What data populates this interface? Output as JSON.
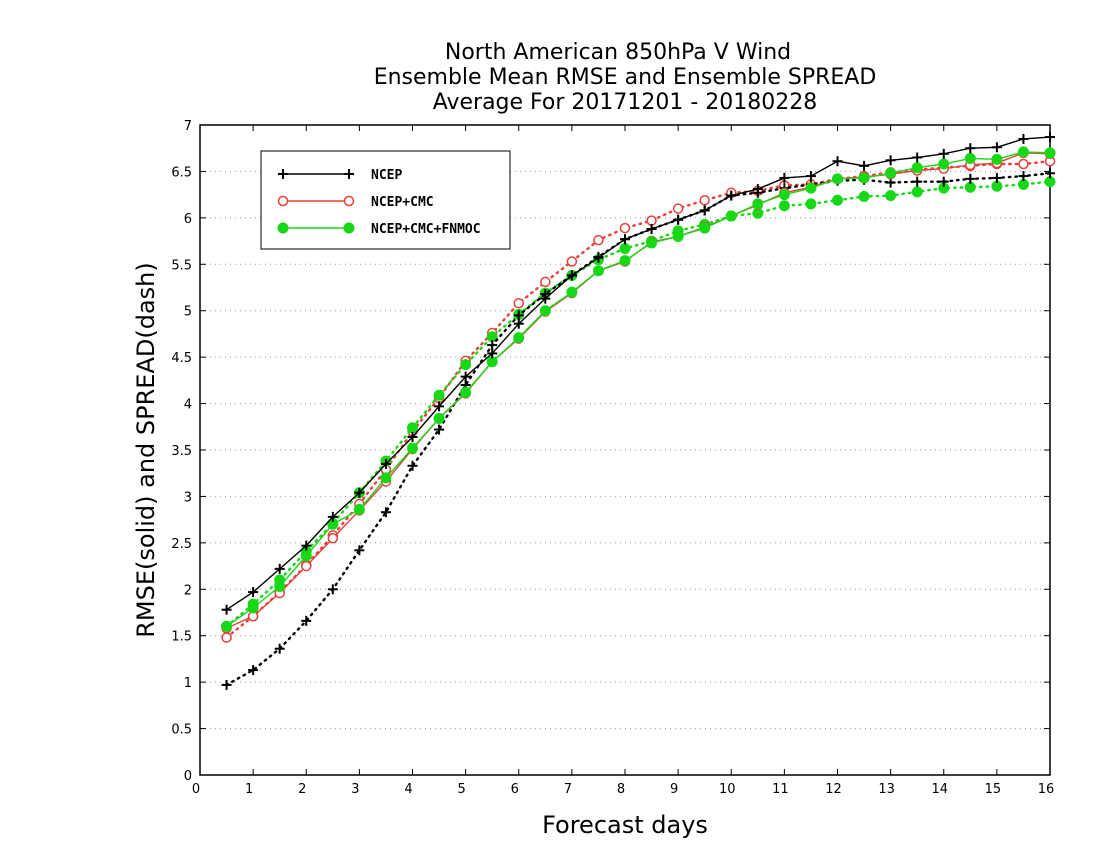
{
  "chart_data": {
    "type": "line",
    "title_lines": [
      "North American 850hPa V Wind",
      "Ensemble Mean RMSE and Ensemble SPREAD",
      "Average For 20171201 - 20180228"
    ],
    "xlabel": "Forecast days",
    "ylabel": "RMSE(solid) and SPREAD(dash)",
    "xlim": [
      0,
      16
    ],
    "ylim": [
      0,
      7
    ],
    "x_ticks": [
      0,
      1,
      2,
      3,
      4,
      5,
      6,
      7,
      8,
      9,
      10,
      11,
      12,
      13,
      14,
      15,
      16
    ],
    "y_ticks": [
      0,
      0.5,
      1,
      1.5,
      2,
      2.5,
      3,
      3.5,
      4,
      4.5,
      5,
      5.5,
      6,
      6.5,
      7
    ],
    "y_tick_labels": [
      "0",
      "0.5",
      "1",
      "1.5",
      "2",
      "2.5",
      "3",
      "3.5",
      "4",
      "4.5",
      "5",
      "5.5",
      "6",
      "6.5",
      "7"
    ],
    "grid": "horizontal dotted",
    "legend_position": "top-left",
    "x": [
      0.5,
      1,
      1.5,
      2,
      2.5,
      3,
      3.5,
      4,
      4.5,
      5,
      5.5,
      6,
      6.5,
      7,
      7.5,
      8,
      8.5,
      9,
      9.5,
      10,
      10.5,
      11,
      11.5,
      12,
      12.5,
      13,
      13.5,
      14,
      14.5,
      15,
      15.5,
      16
    ],
    "series": [
      {
        "name": "NCEP",
        "color": "#000000",
        "marker": "plus",
        "rmse": [
          1.78,
          1.97,
          2.22,
          2.47,
          2.78,
          3.04,
          3.35,
          3.64,
          3.97,
          4.29,
          4.54,
          4.86,
          5.13,
          5.38,
          5.57,
          5.77,
          5.88,
          5.98,
          6.08,
          6.24,
          6.31,
          6.43,
          6.45,
          6.61,
          6.56,
          6.62,
          6.65,
          6.69,
          6.75,
          6.76,
          6.85,
          6.87
        ],
        "spread": [
          0.97,
          1.13,
          1.36,
          1.66,
          2.0,
          2.42,
          2.83,
          3.33,
          3.72,
          4.2,
          4.63,
          4.95,
          5.18,
          5.38,
          5.58,
          5.77,
          5.88,
          5.98,
          6.08,
          6.24,
          6.27,
          6.32,
          6.36,
          6.4,
          6.41,
          6.38,
          6.39,
          6.39,
          6.42,
          6.43,
          6.45,
          6.48
        ]
      },
      {
        "name": "NCEP+CMC",
        "color": "#e8403a",
        "marker": "open-circle",
        "rmse": [
          1.58,
          1.71,
          1.96,
          2.25,
          2.55,
          2.85,
          3.16,
          3.51,
          3.84,
          4.11,
          4.45,
          4.7,
          4.99,
          5.19,
          5.43,
          5.53,
          5.74,
          5.8,
          5.9,
          6.02,
          6.14,
          6.27,
          6.33,
          6.42,
          6.44,
          6.47,
          6.51,
          6.53,
          6.57,
          6.59,
          6.7,
          6.69
        ],
        "spread": [
          1.48,
          1.71,
          1.97,
          2.26,
          2.58,
          2.92,
          3.29,
          3.7,
          4.06,
          4.46,
          4.76,
          5.08,
          5.31,
          5.53,
          5.76,
          5.89,
          5.97,
          6.1,
          6.19,
          6.27,
          6.29,
          6.35,
          6.36,
          6.42,
          6.45,
          6.49,
          6.52,
          6.54,
          6.56,
          6.58,
          6.58,
          6.61
        ]
      },
      {
        "name": "NCEP+CMC+FNMOC",
        "color": "#17d817",
        "marker": "filled-circle",
        "rmse": [
          1.6,
          1.8,
          2.03,
          2.36,
          2.7,
          2.86,
          3.2,
          3.52,
          3.84,
          4.12,
          4.45,
          4.71,
          5.0,
          5.2,
          5.43,
          5.54,
          5.73,
          5.8,
          5.89,
          6.02,
          6.15,
          6.25,
          6.32,
          6.42,
          6.43,
          6.48,
          6.54,
          6.58,
          6.64,
          6.63,
          6.71,
          6.7
        ]
      }
    ],
    "ncep_cmc_fnmoc_spread": [
      1.6,
      1.84,
      2.1,
      2.41,
      2.71,
      3.04,
      3.38,
      3.74,
      4.09,
      4.42,
      4.72,
      4.96,
      5.19,
      5.38,
      5.55,
      5.67,
      5.75,
      5.86,
      5.93,
      6.02,
      6.05,
      6.13,
      6.15,
      6.19,
      6.23,
      6.24,
      6.28,
      6.32,
      6.33,
      6.34,
      6.36,
      6.39
    ]
  }
}
